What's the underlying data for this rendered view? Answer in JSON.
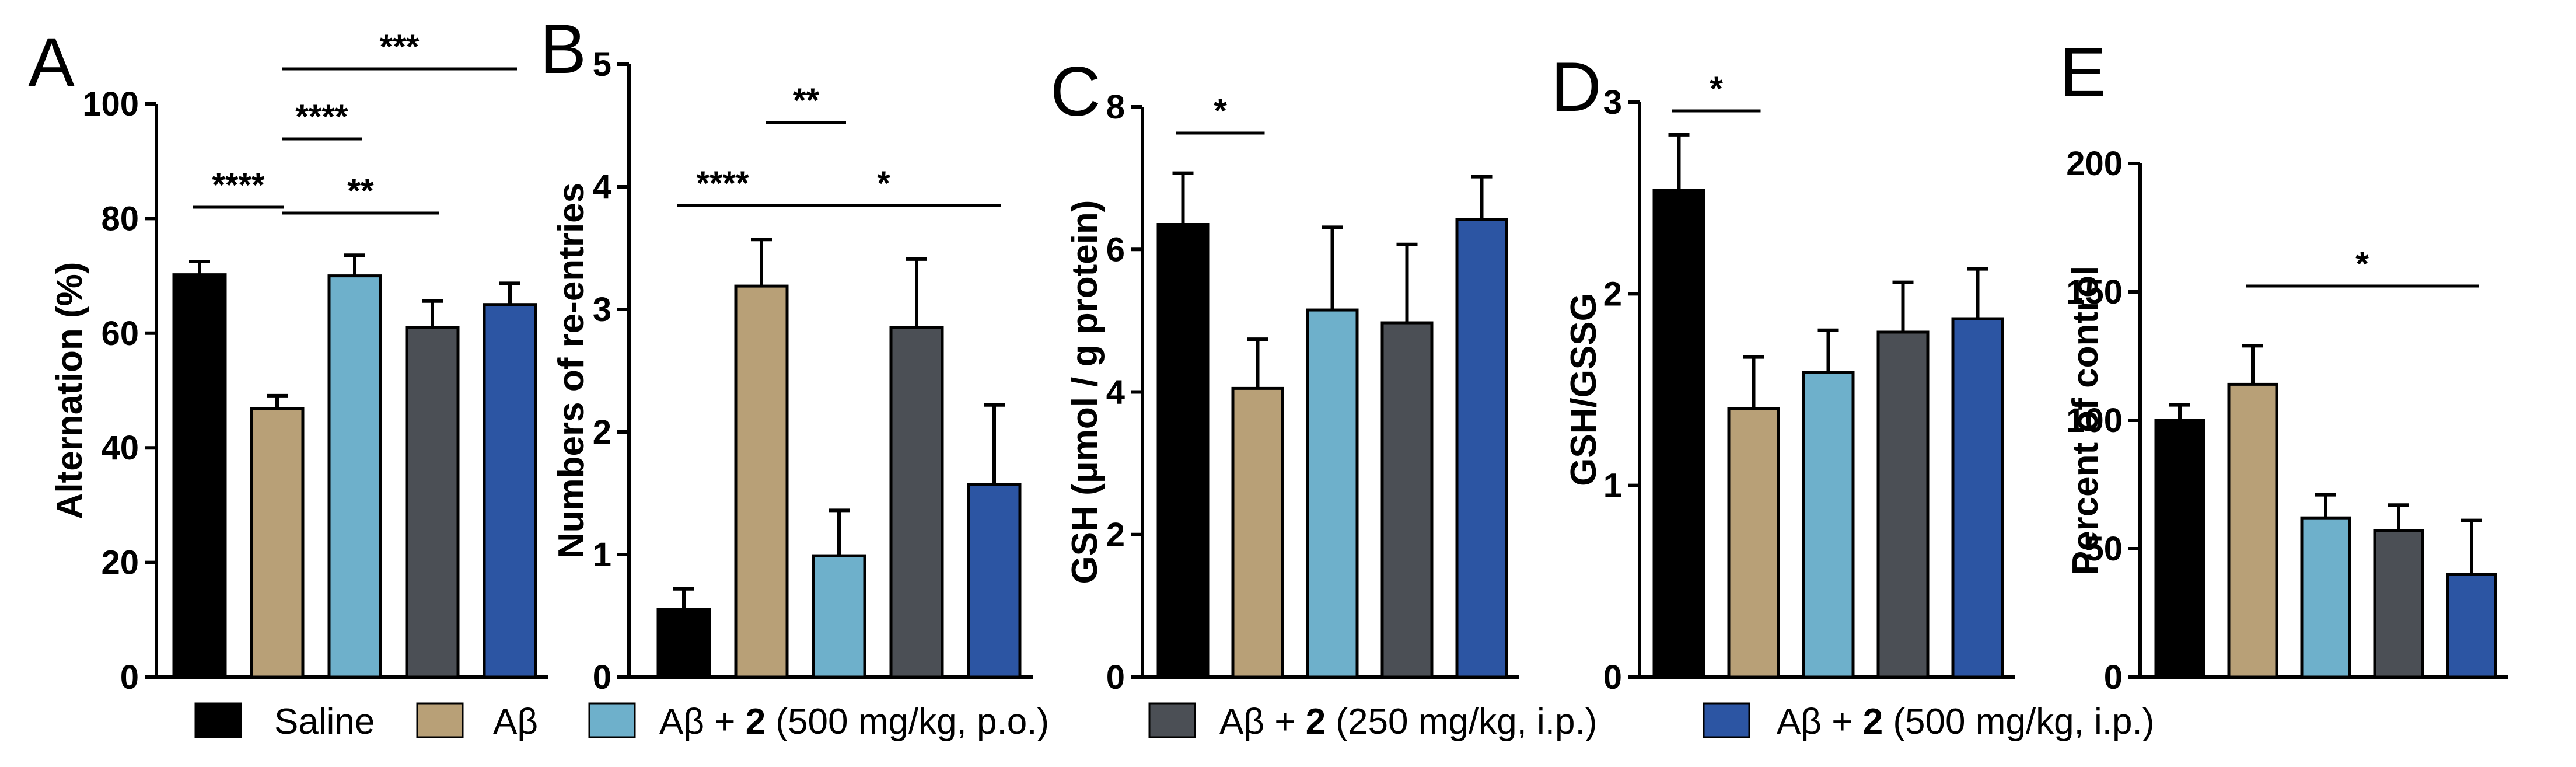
{
  "chart_data": [
    {
      "type": "bar",
      "panel": "A",
      "ylabel": "Alternation (%)",
      "ylim": [
        0,
        100
      ],
      "yticks": [
        0,
        20,
        40,
        60,
        80,
        100
      ],
      "values": [
        70.2,
        46.8,
        70.0,
        61.0,
        65.0
      ],
      "errors": [
        2.3,
        2.3,
        3.6,
        4.6,
        3.7
      ],
      "significance": [
        {
          "from": 0,
          "to": 1,
          "label": "****"
        },
        {
          "from": 1,
          "to": 3,
          "label": "**"
        },
        {
          "from": 1,
          "to": 2,
          "label": "****"
        },
        {
          "from": 1,
          "to": 4,
          "label": "***"
        }
      ]
    },
    {
      "type": "bar",
      "panel": "B",
      "ylabel": "Numbers of re-entries",
      "ylim": [
        0,
        5
      ],
      "yticks": [
        0,
        1,
        2,
        3,
        4,
        5
      ],
      "values": [
        0.55,
        3.19,
        0.99,
        2.85,
        1.57
      ],
      "errors": [
        0.17,
        0.38,
        0.37,
        0.56,
        0.65
      ],
      "significance": [
        {
          "from": 0,
          "to": 1,
          "label": "****"
        },
        {
          "from": 1,
          "to": 4,
          "label": "*"
        },
        {
          "from": 1,
          "to": 2,
          "label": "**"
        }
      ]
    },
    {
      "type": "bar",
      "panel": "C",
      "ylabel": "GSH (μmol / g protein)",
      "ylim": [
        0,
        8
      ],
      "yticks": [
        0,
        2,
        4,
        6,
        8
      ],
      "values": [
        6.35,
        4.05,
        5.15,
        4.97,
        6.42
      ],
      "errors": [
        0.72,
        0.69,
        1.16,
        1.1,
        0.6
      ],
      "significance": [
        {
          "from": 0,
          "to": 1,
          "label": "*"
        }
      ]
    },
    {
      "type": "bar",
      "panel": "D",
      "ylabel": "GSH/GSSG",
      "ylim": [
        0,
        3
      ],
      "yticks": [
        0,
        1,
        2,
        3
      ],
      "values": [
        2.54,
        1.4,
        1.59,
        1.8,
        1.87
      ],
      "errors": [
        0.29,
        0.27,
        0.22,
        0.26,
        0.26
      ],
      "significance": [
        {
          "from": 0,
          "to": 1,
          "label": "*"
        }
      ]
    },
    {
      "type": "bar",
      "panel": "E",
      "ylabel": "Percent of control",
      "ylim": [
        0,
        200
      ],
      "yticks": [
        0,
        50,
        100,
        150,
        200
      ],
      "values": [
        100,
        114,
        62,
        57,
        40
      ],
      "errors": [
        6,
        15,
        9,
        10,
        21
      ],
      "significance": [
        {
          "from": 1,
          "to": 4,
          "label": "*"
        }
      ]
    }
  ],
  "legend": [
    {
      "name": "Saline",
      "color": "#000000",
      "prefix": "Saline",
      "bold": "",
      "suffix": ""
    },
    {
      "name": "Aβ",
      "color": "#b8a077",
      "prefix": "Aβ",
      "bold": "",
      "suffix": ""
    },
    {
      "name": "Aβ + 2 (500 mg/kg, p.o.)",
      "color": "#6eb0cb",
      "prefix": "Aβ + ",
      "bold": "2",
      "suffix": " (500 mg/kg, p.o.)"
    },
    {
      "name": "Aβ + 2 (250 mg/kg, i.p.)",
      "color": "#4b4f55",
      "prefix": "Aβ + ",
      "bold": "2",
      "suffix": " (250 mg/kg, i.p.)"
    },
    {
      "name": "Aβ + 2 (500 mg/kg, i.p.)",
      "color": "#2c55a3",
      "prefix": "Aβ + ",
      "bold": "2",
      "suffix": " (500 mg/kg, i.p.)"
    }
  ]
}
